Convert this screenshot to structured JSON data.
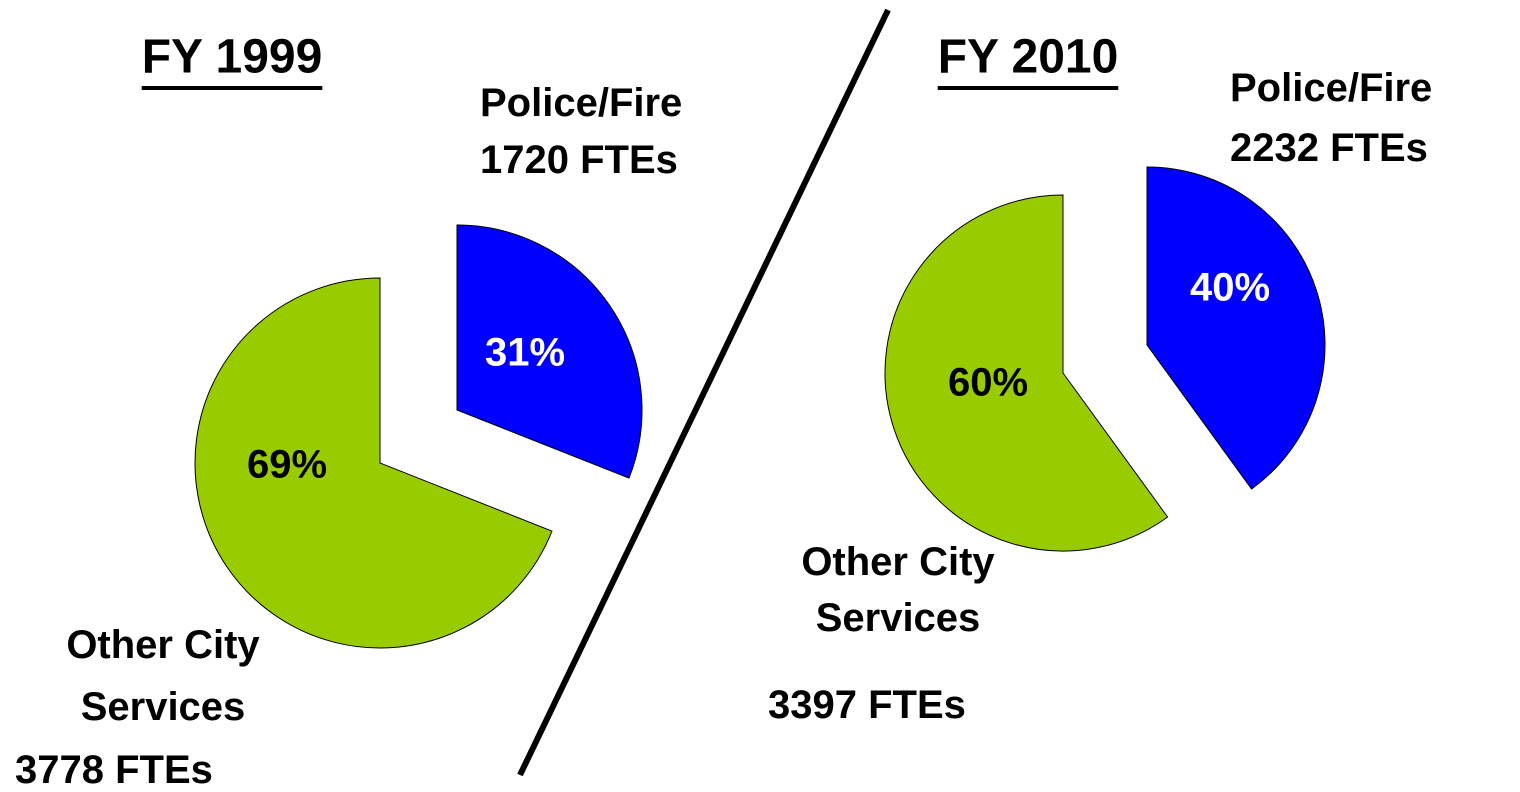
{
  "chart_data": [
    {
      "type": "pie",
      "title": "FY 1999",
      "categories": [
        "Police/Fire",
        "Other City Services"
      ],
      "values": [
        31,
        69
      ],
      "value_labels": [
        "31%",
        "69%"
      ],
      "colors": [
        "#0000ff",
        "#99cc00"
      ],
      "annotations": [
        "1720 FTEs",
        "3778 FTEs"
      ]
    },
    {
      "type": "pie",
      "title": "FY 2010",
      "categories": [
        "Police/Fire",
        "Other City Services"
      ],
      "values": [
        40,
        60
      ],
      "value_labels": [
        "40%",
        "60%"
      ],
      "colors": [
        "#0000ff",
        "#99cc00"
      ],
      "annotations": [
        "2232 FTEs",
        "3397 FTEs"
      ]
    }
  ]
}
